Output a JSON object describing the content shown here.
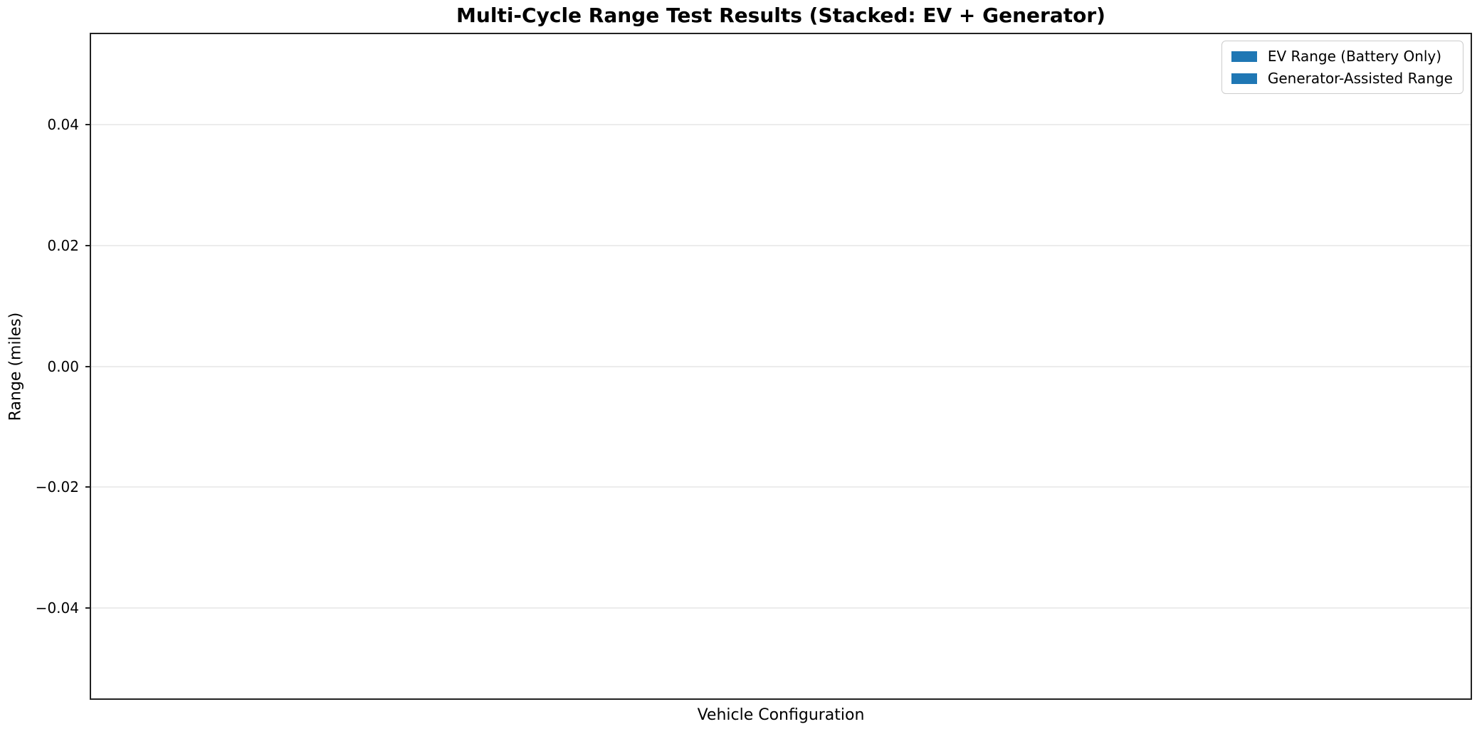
{
  "chart_data": {
    "type": "bar",
    "stacked": true,
    "title": "Multi-Cycle Range Test Results (Stacked: EV + Generator)",
    "xlabel": "Vehicle Configuration",
    "ylabel": "Range (miles)",
    "categories": [],
    "series": [
      {
        "name": "EV Range (Battery Only)",
        "color": "#1f77b4",
        "values": []
      },
      {
        "name": "Generator-Assisted Range",
        "color": "#1f77b4",
        "values": []
      }
    ],
    "ylim": [
      -0.055,
      0.055
    ],
    "yticks": [
      {
        "value": 0.04,
        "label": "0.04"
      },
      {
        "value": 0.02,
        "label": "0.02"
      },
      {
        "value": 0.0,
        "label": "0.00"
      },
      {
        "value": -0.02,
        "label": "−0.02"
      },
      {
        "value": -0.04,
        "label": "−0.04"
      }
    ],
    "xticks": [],
    "grid": "horizontal",
    "legend_position": "upper-right",
    "colors": {
      "bar_blue": "#1f77b4",
      "gridline": "#ececec",
      "spine": "#222222",
      "text": "#000000",
      "legend_border": "#cccccc",
      "background": "#ffffff"
    }
  }
}
